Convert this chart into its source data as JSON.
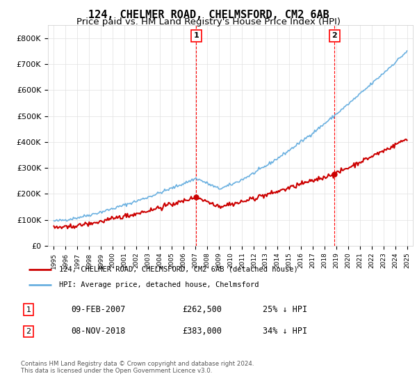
{
  "title": "124, CHELMER ROAD, CHELMSFORD, CM2 6AB",
  "subtitle": "Price paid vs. HM Land Registry's House Price Index (HPI)",
  "title_fontsize": 11,
  "subtitle_fontsize": 9.5,
  "hpi_color": "#6ab0e0",
  "price_color": "#cc0000",
  "marker1_year": 2007.1,
  "marker2_year": 2018.85,
  "marker1_price": 262500,
  "marker2_price": 383000,
  "ylim": [
    0,
    850000
  ],
  "yticks": [
    0,
    100000,
    200000,
    300000,
    400000,
    500000,
    600000,
    700000,
    800000
  ],
  "ytick_labels": [
    "£0",
    "£100K",
    "£200K",
    "£300K",
    "£400K",
    "£500K",
    "£600K",
    "£700K",
    "£800K"
  ],
  "legend_label_red": "124, CHELMER ROAD, CHELMSFORD, CM2 6AB (detached house)",
  "legend_label_blue": "HPI: Average price, detached house, Chelmsford",
  "table_row1": [
    "1",
    "09-FEB-2007",
    "£262,500",
    "25% ↓ HPI"
  ],
  "table_row2": [
    "2",
    "08-NOV-2018",
    "£383,000",
    "34% ↓ HPI"
  ],
  "footnote": "Contains HM Land Registry data © Crown copyright and database right 2024.\nThis data is licensed under the Open Government Licence v3.0.",
  "background_color": "#ffffff",
  "grid_color": "#e0e0e0"
}
